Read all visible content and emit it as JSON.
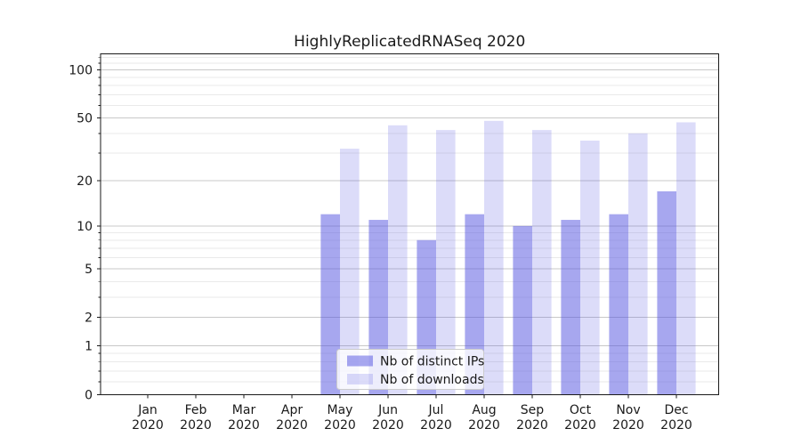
{
  "figure": {
    "title": "HighlyReplicatedRNASeq 2020"
  },
  "chart_data": {
    "type": "bar",
    "title": "HighlyReplicatedRNASeq 2020",
    "xlabel": "",
    "ylabel": "",
    "categories": [
      "Jan 2020",
      "Feb 2020",
      "Mar 2020",
      "Apr 2020",
      "May 2020",
      "Jun 2020",
      "Jul 2020",
      "Aug 2020",
      "Sep 2020",
      "Oct 2020",
      "Nov 2020",
      "Dec 2020"
    ],
    "x_tick_month": [
      "Jan",
      "Feb",
      "Mar",
      "Apr",
      "May",
      "Jun",
      "Jul",
      "Aug",
      "Sep",
      "Oct",
      "Nov",
      "Dec"
    ],
    "x_tick_year": "2020",
    "series": [
      {
        "name": "Nb of distinct IPs",
        "color": "#5050e0",
        "fill_opacity": 0.5,
        "values": [
          0,
          0,
          0,
          0,
          12,
          11,
          8,
          12,
          10,
          11,
          12,
          17
        ]
      },
      {
        "name": "Nb of downloads",
        "color": "#5050e0",
        "fill_opacity": 0.2,
        "values": [
          0,
          0,
          0,
          0,
          32,
          45,
          42,
          48,
          42,
          36,
          40,
          47
        ]
      }
    ],
    "yscale": "log1p",
    "ylim": [
      0,
      126
    ],
    "y_major_ticks": [
      0,
      1,
      2,
      5,
      10,
      20,
      50,
      100
    ],
    "y_minor_ticks": [
      0.2,
      0.4,
      0.6,
      0.8,
      3,
      4,
      6,
      7,
      8,
      9,
      30,
      40,
      60,
      70,
      80,
      90,
      110,
      120
    ],
    "grid": "horizontal",
    "legend_position": "lower center",
    "colors": {
      "grid_major": "#c8c8c8",
      "grid_minor": "#eaeaea",
      "spine": "#1a1a1a",
      "text": "#1a1a1a",
      "legend_bg": "rgba(255,255,255,0.8)",
      "legend_border": "#cccccc"
    }
  }
}
